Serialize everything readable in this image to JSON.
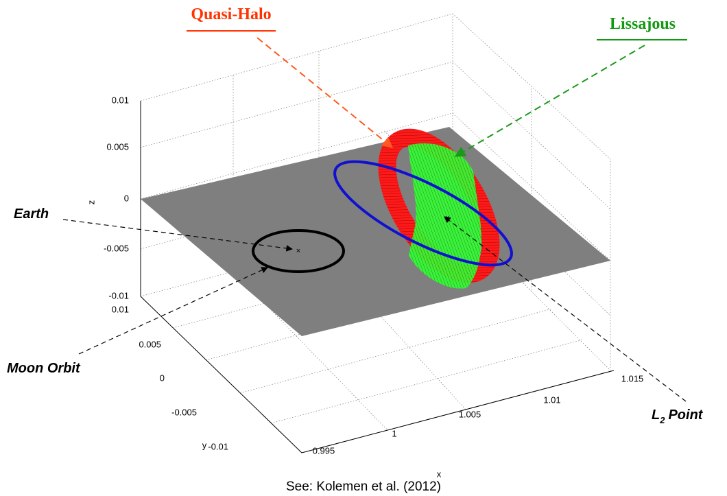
{
  "figure": {
    "annotations": {
      "quasi_halo": "Quasi-Halo",
      "lissajous": "Lissajous",
      "earth": "Earth",
      "moon_orbit": "Moon Orbit",
      "l2_point": {
        "main": "L",
        "sub": "2",
        "rest": "Point"
      }
    },
    "axes": {
      "x_label": "x",
      "y_label": "y",
      "z_label": "z",
      "x_ticks": [
        "0.995",
        "1",
        "1.005",
        "1.01",
        "1.015"
      ],
      "y_ticks": [
        "0.01",
        "0.005",
        "0",
        "-0.005",
        "-0.01"
      ],
      "z_ticks": [
        "0.01",
        "0.005",
        "0",
        "-0.005",
        "-0.01"
      ]
    },
    "caption": "See: Kolemen et al. (2012)"
  }
}
